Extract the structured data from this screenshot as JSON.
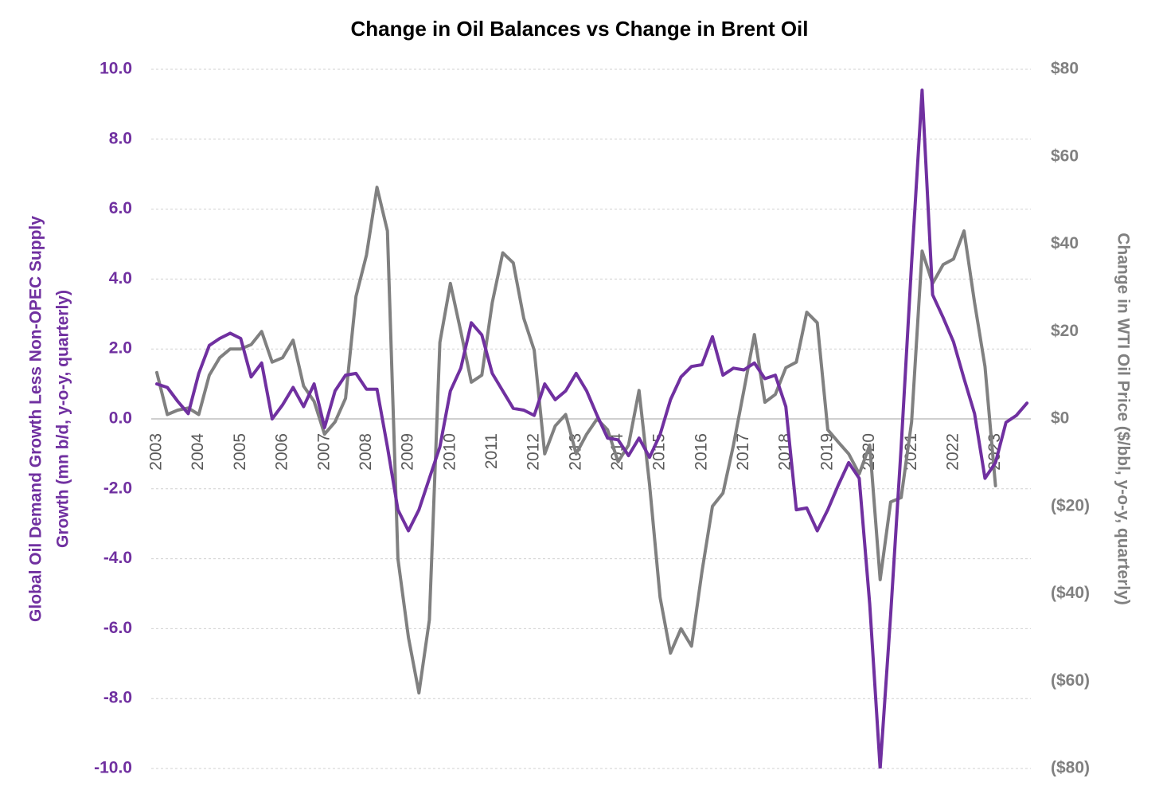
{
  "chart_data": {
    "type": "line",
    "title": "Change in Oil Balances vs Change in Brent Oil",
    "ylabel": [
      "Global Oil Demand Growth Less Non-OPEC Supply",
      "Growth (mn b/d, y-o-y, quarterly)"
    ],
    "y2label": "Change in WTI Oil Price ($/bbl, y-o-y, quarterly)",
    "categories": [
      "2003",
      null,
      null,
      null,
      "2004",
      null,
      null,
      null,
      "2005",
      null,
      null,
      null,
      "2006",
      null,
      null,
      null,
      "2007",
      null,
      null,
      null,
      "2008",
      null,
      null,
      null,
      "2009",
      null,
      null,
      null,
      "2010",
      null,
      null,
      null,
      "2011",
      null,
      null,
      null,
      "2012",
      null,
      null,
      null,
      "2013",
      null,
      null,
      null,
      "2014",
      null,
      null,
      null,
      "2015",
      null,
      null,
      null,
      "2016",
      null,
      null,
      null,
      "2017",
      null,
      null,
      null,
      "2018",
      null,
      null,
      null,
      "2019",
      null,
      null,
      null,
      "2020",
      null,
      null,
      null,
      "2021",
      null,
      null,
      null,
      "2022",
      null,
      null,
      null,
      "2023",
      null,
      null,
      null
    ],
    "ylim": [
      -10,
      10
    ],
    "yticks": [
      {
        "value": 10,
        "label": "10.0"
      },
      {
        "value": 8,
        "label": "8.0"
      },
      {
        "value": 6,
        "label": "6.0"
      },
      {
        "value": 4,
        "label": "4.0"
      },
      {
        "value": 2,
        "label": "2.0"
      },
      {
        "value": 0,
        "label": "0.0"
      },
      {
        "value": -2,
        "label": "-2.0"
      },
      {
        "value": -4,
        "label": "-4.0"
      },
      {
        "value": -6,
        "label": "-6.0"
      },
      {
        "value": -8,
        "label": "-8.0"
      },
      {
        "value": -10,
        "label": "-10.0"
      }
    ],
    "y2lim": [
      -80,
      80
    ],
    "y2ticks": [
      {
        "value": 80,
        "label": "$80"
      },
      {
        "value": 60,
        "label": "$60"
      },
      {
        "value": 40,
        "label": "$40"
      },
      {
        "value": 20,
        "label": "$20"
      },
      {
        "value": 0,
        "label": "$0"
      },
      {
        "value": -20,
        "label": "($20)"
      },
      {
        "value": -40,
        "label": "($40)"
      },
      {
        "value": -60,
        "label": "($60)"
      },
      {
        "value": -80,
        "label": "($80)"
      }
    ],
    "grid": true,
    "ylabel_color": "#7030a0",
    "y2label_color": "#808080",
    "series": [
      {
        "color": "#808080",
        "axis": "y2",
        "values": [
          10.6,
          1,
          2,
          2.5,
          1,
          10,
          14,
          16,
          16,
          17,
          20,
          13,
          14,
          18,
          7.5,
          4,
          -3.5,
          -0.7,
          4.7,
          28,
          37.5,
          53,
          43,
          -32,
          -50,
          -62.7,
          -46,
          17.5,
          31,
          20,
          8.4,
          10,
          26.6,
          38,
          35.7,
          23,
          15.7,
          -8,
          -1.6,
          1,
          -8,
          -3.5,
          0,
          -2.5,
          -9.8,
          -6,
          6.5,
          -15,
          -40.8,
          -53.6,
          -48,
          -52,
          -35,
          -20,
          -17,
          -6,
          6.5,
          19.3,
          3.8,
          5.6,
          11.7,
          13,
          24.4,
          22,
          -2.5,
          -5.3,
          -8,
          -12.6,
          -6,
          -36.8,
          -19,
          -18,
          -0.7,
          38.4,
          31,
          35.3,
          36.6,
          43,
          26.6,
          12,
          -15.3,
          null,
          null,
          null
        ]
      },
      {
        "color": "#7030a0",
        "values": [
          1.0,
          0.9,
          0.5,
          0.15,
          1.3,
          2.1,
          2.3,
          2.45,
          2.3,
          1.2,
          1.6,
          0.0,
          0.4,
          0.9,
          0.35,
          1.0,
          -0.25,
          0.8,
          1.25,
          1.3,
          0.85,
          0.85,
          -0.8,
          -2.6,
          -3.2,
          -2.6,
          -1.7,
          -0.8,
          0.8,
          1.45,
          2.75,
          2.4,
          1.3,
          0.8,
          0.3,
          0.25,
          0.1,
          1.0,
          0.55,
          0.8,
          1.3,
          0.8,
          0.1,
          -0.55,
          -0.6,
          -1.05,
          -0.55,
          -1.1,
          -0.45,
          0.55,
          1.2,
          1.5,
          1.55,
          2.35,
          1.25,
          1.45,
          1.4,
          1.6,
          1.15,
          1.25,
          0.35,
          -2.6,
          -2.55,
          -3.2,
          -2.6,
          -1.9,
          -1.25,
          -1.7,
          -5.3,
          -10.0,
          -5.6,
          -0.8,
          4.45,
          9.4,
          3.55,
          2.9,
          2.2,
          1.15,
          0.15,
          -1.7,
          -1.25,
          -0.1,
          0.1,
          0.45
        ]
      }
    ]
  }
}
